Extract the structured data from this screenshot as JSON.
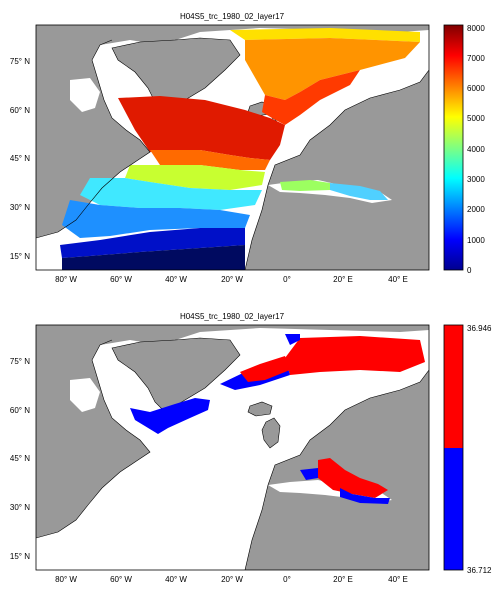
{
  "panels": [
    {
      "title": "H04S5_trc_1980_02_layer17",
      "colorbar": {
        "type": "continuous",
        "ticks": [
          "0",
          "1000",
          "2000",
          "3000",
          "4000",
          "5000",
          "6000",
          "7000",
          "8000"
        ]
      }
    },
    {
      "title": "H04S5_trc_1980_02_layer17",
      "colorbar": {
        "type": "binary",
        "top_label": "36.946",
        "bottom_label": "36.712",
        "colors": [
          "#ff0000",
          "#0000ff"
        ]
      }
    }
  ],
  "axes": {
    "lon_labels": [
      "80° W",
      "60° W",
      "40° W",
      "20° W",
      "0°",
      "20° E",
      "40° E"
    ],
    "lat_labels": [
      "75° N",
      "60° N",
      "45° N",
      "30° N",
      "15° N"
    ]
  },
  "colors": {
    "land": "#999999",
    "ocean": "#ffffff",
    "coast": "#000000"
  }
}
